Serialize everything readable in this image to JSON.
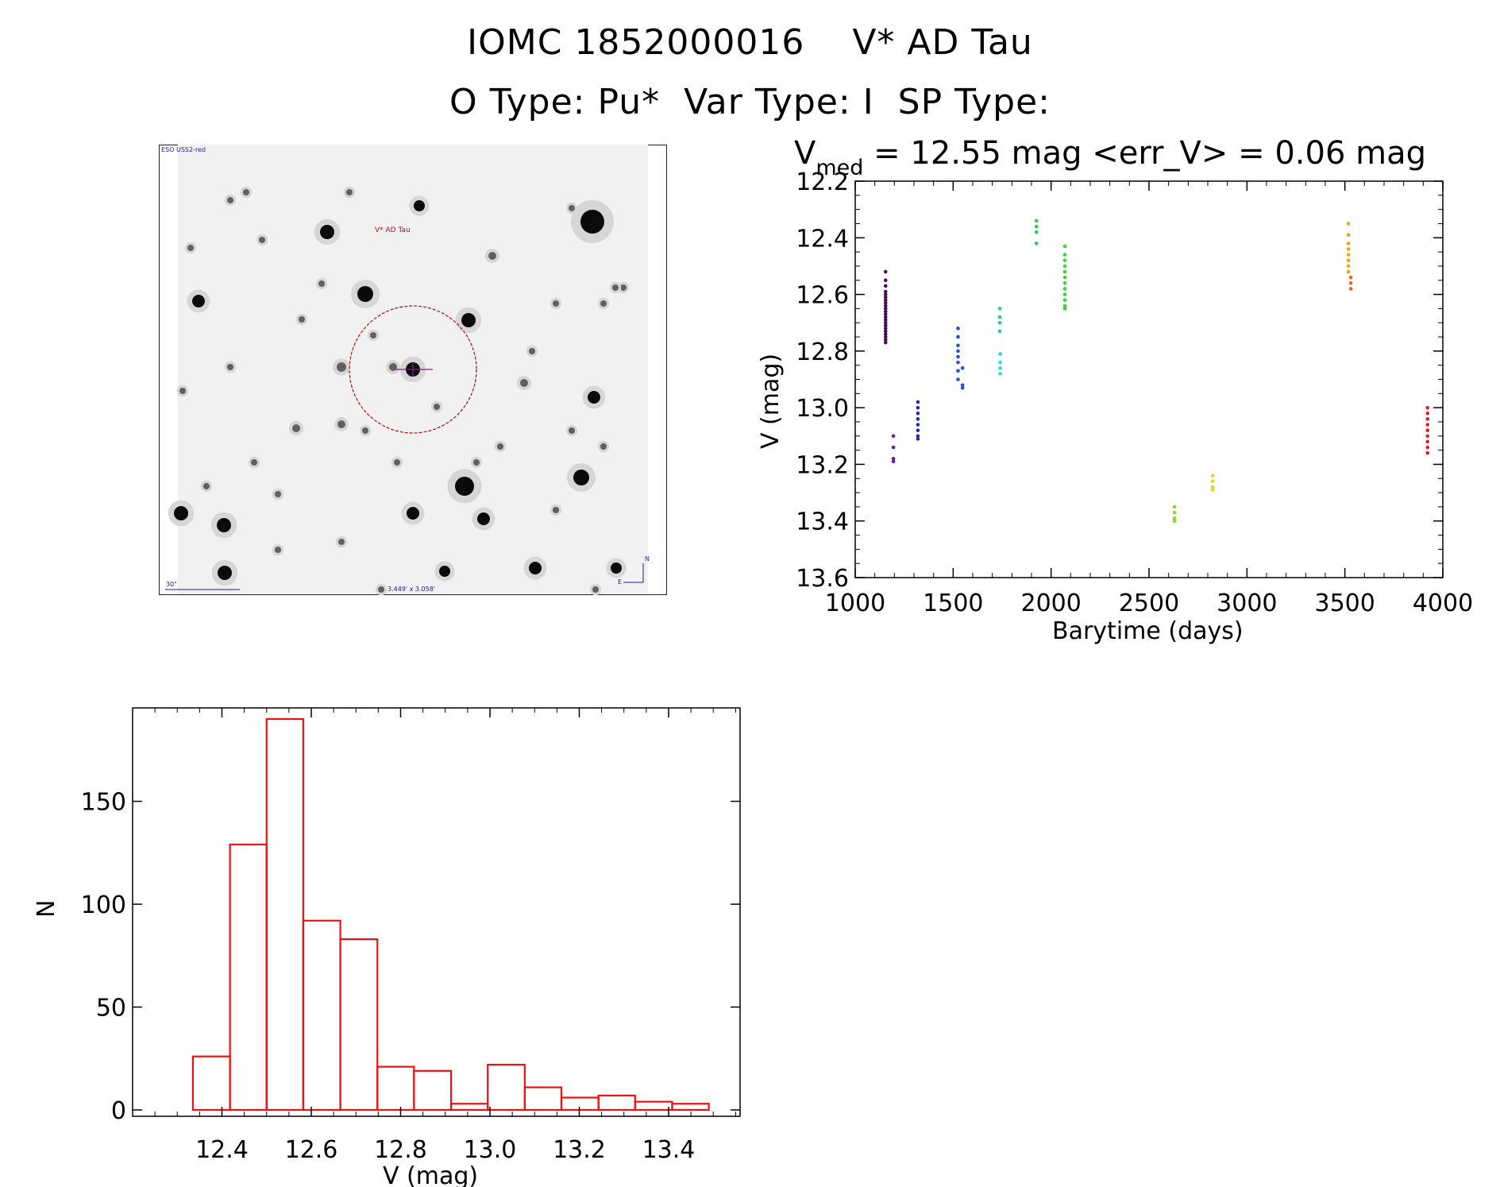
{
  "header": {
    "title_line1": "IOMC 1852000016    V* AD Tau",
    "title_line2": "O Type: Pu*  Var Type: I  SP Type:"
  },
  "finder": {
    "survey_label": "ESO USS2-red",
    "object_label": "V* AD Tau",
    "scale_label": "30\"",
    "fov_label": "3.449' x 3.058'",
    "north_label": "N",
    "east_label": "E",
    "colors": {
      "marker": "#aa1111",
      "text": "#1a1a99",
      "cross": "#882288"
    }
  },
  "lightcurve": {
    "stat_prefix": "V",
    "stat_sub": "med",
    "stat_rest": " = 12.55 mag <err_V> = 0.06 mag",
    "chart_data": {
      "type": "scatter",
      "xlabel": "Barytime (days)",
      "ylabel": "V (mag)",
      "xlim": [
        1000,
        4000
      ],
      "ylim": [
        13.6,
        12.2
      ],
      "y_inverted": true,
      "x_ticks": [
        1000,
        1500,
        2000,
        2500,
        3000,
        3500,
        4000
      ],
      "x_tick_labels": [
        "1000",
        "1500",
        "2000",
        "2500",
        "3000",
        "3500",
        "4000"
      ],
      "y_ticks": [
        12.2,
        12.4,
        12.6,
        12.8,
        13.0,
        13.2,
        13.4,
        13.6
      ],
      "y_tick_labels": [
        "12.2",
        "12.4",
        "12.6",
        "12.8",
        "13.0",
        "13.2",
        "13.4",
        "13.6"
      ],
      "groups": [
        {
          "x": 1155,
          "color": "#4a0a5e",
          "points": [
            12.52,
            12.55,
            12.57,
            12.59,
            12.6,
            12.61,
            12.62,
            12.63,
            12.64,
            12.65,
            12.66,
            12.67,
            12.68,
            12.69,
            12.7,
            12.71,
            12.72,
            12.73,
            12.74,
            12.75,
            12.76,
            12.77
          ]
        },
        {
          "x": 1195,
          "color": "#6a1b9a",
          "points": [
            13.1,
            13.14,
            13.18,
            13.19
          ]
        },
        {
          "x": 1320,
          "color": "#2626b8",
          "points": [
            12.98,
            13.0,
            13.02,
            13.04,
            13.06,
            13.08,
            13.1,
            13.11
          ]
        },
        {
          "x": 1525,
          "color": "#2253d6",
          "points": [
            12.72,
            12.75,
            12.78,
            12.8,
            12.82,
            12.84,
            12.87,
            12.9
          ]
        },
        {
          "x": 1548,
          "color": "#2253d6",
          "points": [
            12.86,
            12.92,
            12.93
          ]
        },
        {
          "x": 1738,
          "color": "#1fc9a6",
          "points": [
            12.65,
            12.68,
            12.7,
            12.73
          ]
        },
        {
          "x": 1740,
          "color": "#22dde8",
          "points": [
            12.81,
            12.84,
            12.86,
            12.88
          ]
        },
        {
          "x": 1925,
          "color": "#22cc55",
          "points": [
            12.34,
            12.36,
            12.38,
            12.42
          ]
        },
        {
          "x": 2070,
          "color": "#33dd33",
          "points": [
            12.43,
            12.46,
            12.48,
            12.5,
            12.52,
            12.54,
            12.56,
            12.58,
            12.6,
            12.62,
            12.64,
            12.65
          ]
        },
        {
          "x": 2630,
          "color": "#88dd22",
          "points": [
            13.35,
            13.37,
            13.39,
            13.4
          ]
        },
        {
          "x": 2825,
          "color": "#d6df1a",
          "points": [
            13.24,
            13.26,
            13.28,
            13.29
          ]
        },
        {
          "x": 3518,
          "color": "#f0a414",
          "points": [
            12.35,
            12.39,
            12.42,
            12.44,
            12.46,
            12.48,
            12.5,
            12.52
          ]
        },
        {
          "x": 3530,
          "color": "#ee6618",
          "points": [
            12.54,
            12.56,
            12.58
          ]
        },
        {
          "x": 3922,
          "color": "#dd2222",
          "points": [
            13.0,
            13.02,
            13.04,
            13.06,
            13.08,
            13.1,
            13.12,
            13.14,
            13.16
          ]
        }
      ]
    }
  },
  "histogram": {
    "chart_data": {
      "type": "bar",
      "xlabel": "V (mag)",
      "ylabel": "N",
      "xlim": [
        12.2,
        13.56
      ],
      "ylim": [
        0,
        190
      ],
      "x_ticks": [
        12.4,
        12.6,
        12.8,
        13.0,
        13.2,
        13.4
      ],
      "x_tick_labels": [
        "12.4",
        "12.6",
        "12.8",
        "13.0",
        "13.2",
        "13.4"
      ],
      "y_ticks": [
        0,
        50,
        100,
        150
      ],
      "y_tick_labels": [
        "0",
        "50",
        "100",
        "150"
      ],
      "bin_edges": [
        12.335,
        12.418,
        12.5,
        12.582,
        12.665,
        12.748,
        12.83,
        12.913,
        12.995,
        13.078,
        13.16,
        13.243,
        13.325,
        13.408,
        13.49
      ],
      "values": [
        26,
        129,
        190,
        92,
        83,
        21,
        19,
        3,
        22,
        11,
        6,
        7,
        4,
        3
      ],
      "color": "#ee1111"
    }
  }
}
